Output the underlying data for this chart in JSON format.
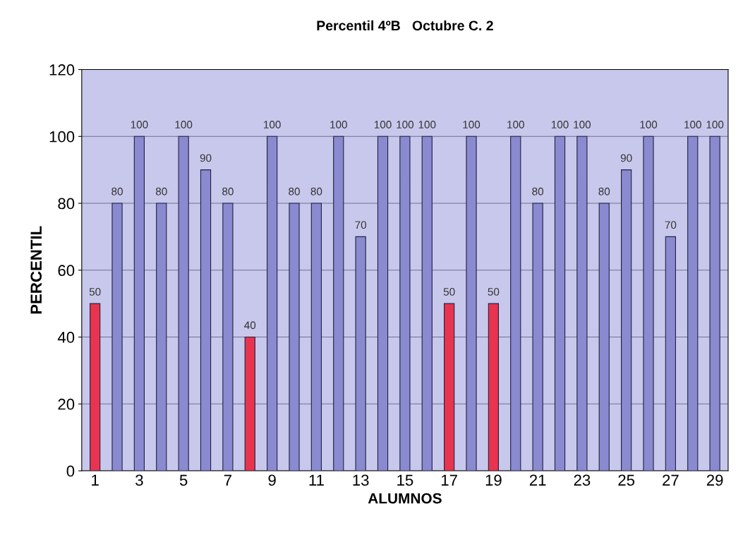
{
  "chart_data": {
    "type": "bar",
    "title": "Percentil 4ºB   Octubre C. 2",
    "xlabel": "ALUMNOS",
    "ylabel": "PERCENTIL",
    "categories": [
      "1",
      null,
      "3",
      null,
      "5",
      null,
      "7",
      null,
      "9",
      null,
      "11",
      null,
      "13",
      null,
      "15",
      null,
      "17",
      null,
      "19",
      null,
      "21",
      null,
      "23",
      null,
      "25",
      null,
      "27",
      null,
      "29"
    ],
    "values": [
      50,
      80,
      100,
      80,
      100,
      90,
      80,
      40,
      100,
      80,
      80,
      100,
      70,
      100,
      100,
      100,
      50,
      100,
      50,
      100,
      80,
      100,
      100,
      80,
      90,
      100,
      70,
      100,
      100
    ],
    "colors": [
      "#e8344e",
      "#8a8ad0",
      "#8a8ad0",
      "#8a8ad0",
      "#8a8ad0",
      "#8a8ad0",
      "#8a8ad0",
      "#e8344e",
      "#8a8ad0",
      "#8a8ad0",
      "#8a8ad0",
      "#8a8ad0",
      "#8a8ad0",
      "#8a8ad0",
      "#8a8ad0",
      "#8a8ad0",
      "#e8344e",
      "#8a8ad0",
      "#e8344e",
      "#8a8ad0",
      "#8a8ad0",
      "#8a8ad0",
      "#8a8ad0",
      "#8a8ad0",
      "#8a8ad0",
      "#8a8ad0",
      "#8a8ad0",
      "#8a8ad0",
      "#8a8ad0"
    ],
    "ylim": [
      0,
      120
    ],
    "yticks": [
      0,
      20,
      40,
      60,
      80,
      100,
      120
    ],
    "grid": "y",
    "data_labels": true,
    "legend": false
  }
}
